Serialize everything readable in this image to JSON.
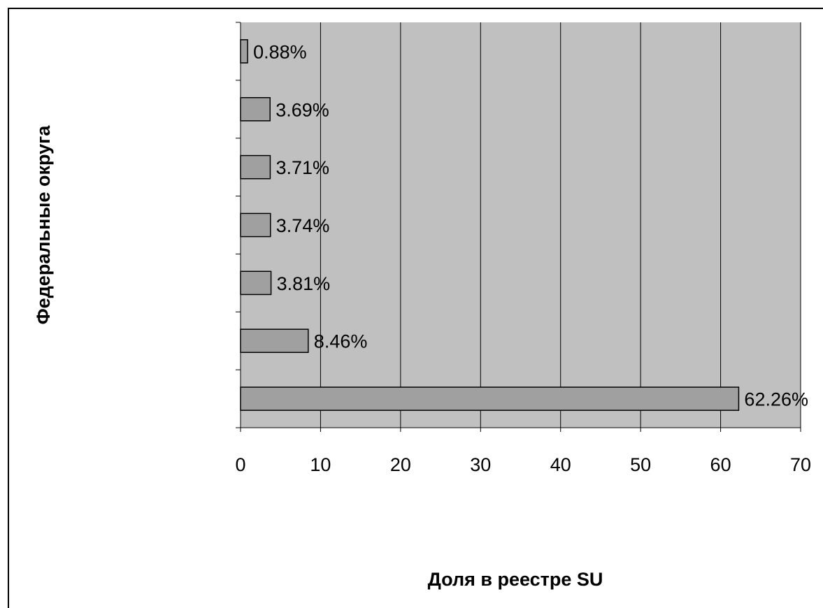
{
  "chart_data": {
    "type": "bar",
    "orientation": "horizontal",
    "title": "",
    "xlabel": "Доля в реестре SU",
    "ylabel": "Федеральные округа",
    "xlim": [
      0,
      70
    ],
    "xticks": [
      0,
      10,
      20,
      30,
      40,
      50,
      60,
      70
    ],
    "categories": [
      "",
      "",
      "",
      "",
      "",
      "",
      ""
    ],
    "values": [
      62.26,
      8.46,
      3.81,
      3.74,
      3.71,
      3.69,
      0.88
    ],
    "data_labels": [
      "62.26%",
      "8.46%",
      "3.81%",
      "3.74%",
      "3.71%",
      "3.69%",
      "0.88%"
    ],
    "grid": true,
    "legend": "none",
    "colors": {
      "plot_background": "#c0c0c0",
      "bar_fill": "#a0a0a0",
      "bar_stroke": "#000000",
      "gridline": "#000000"
    }
  }
}
